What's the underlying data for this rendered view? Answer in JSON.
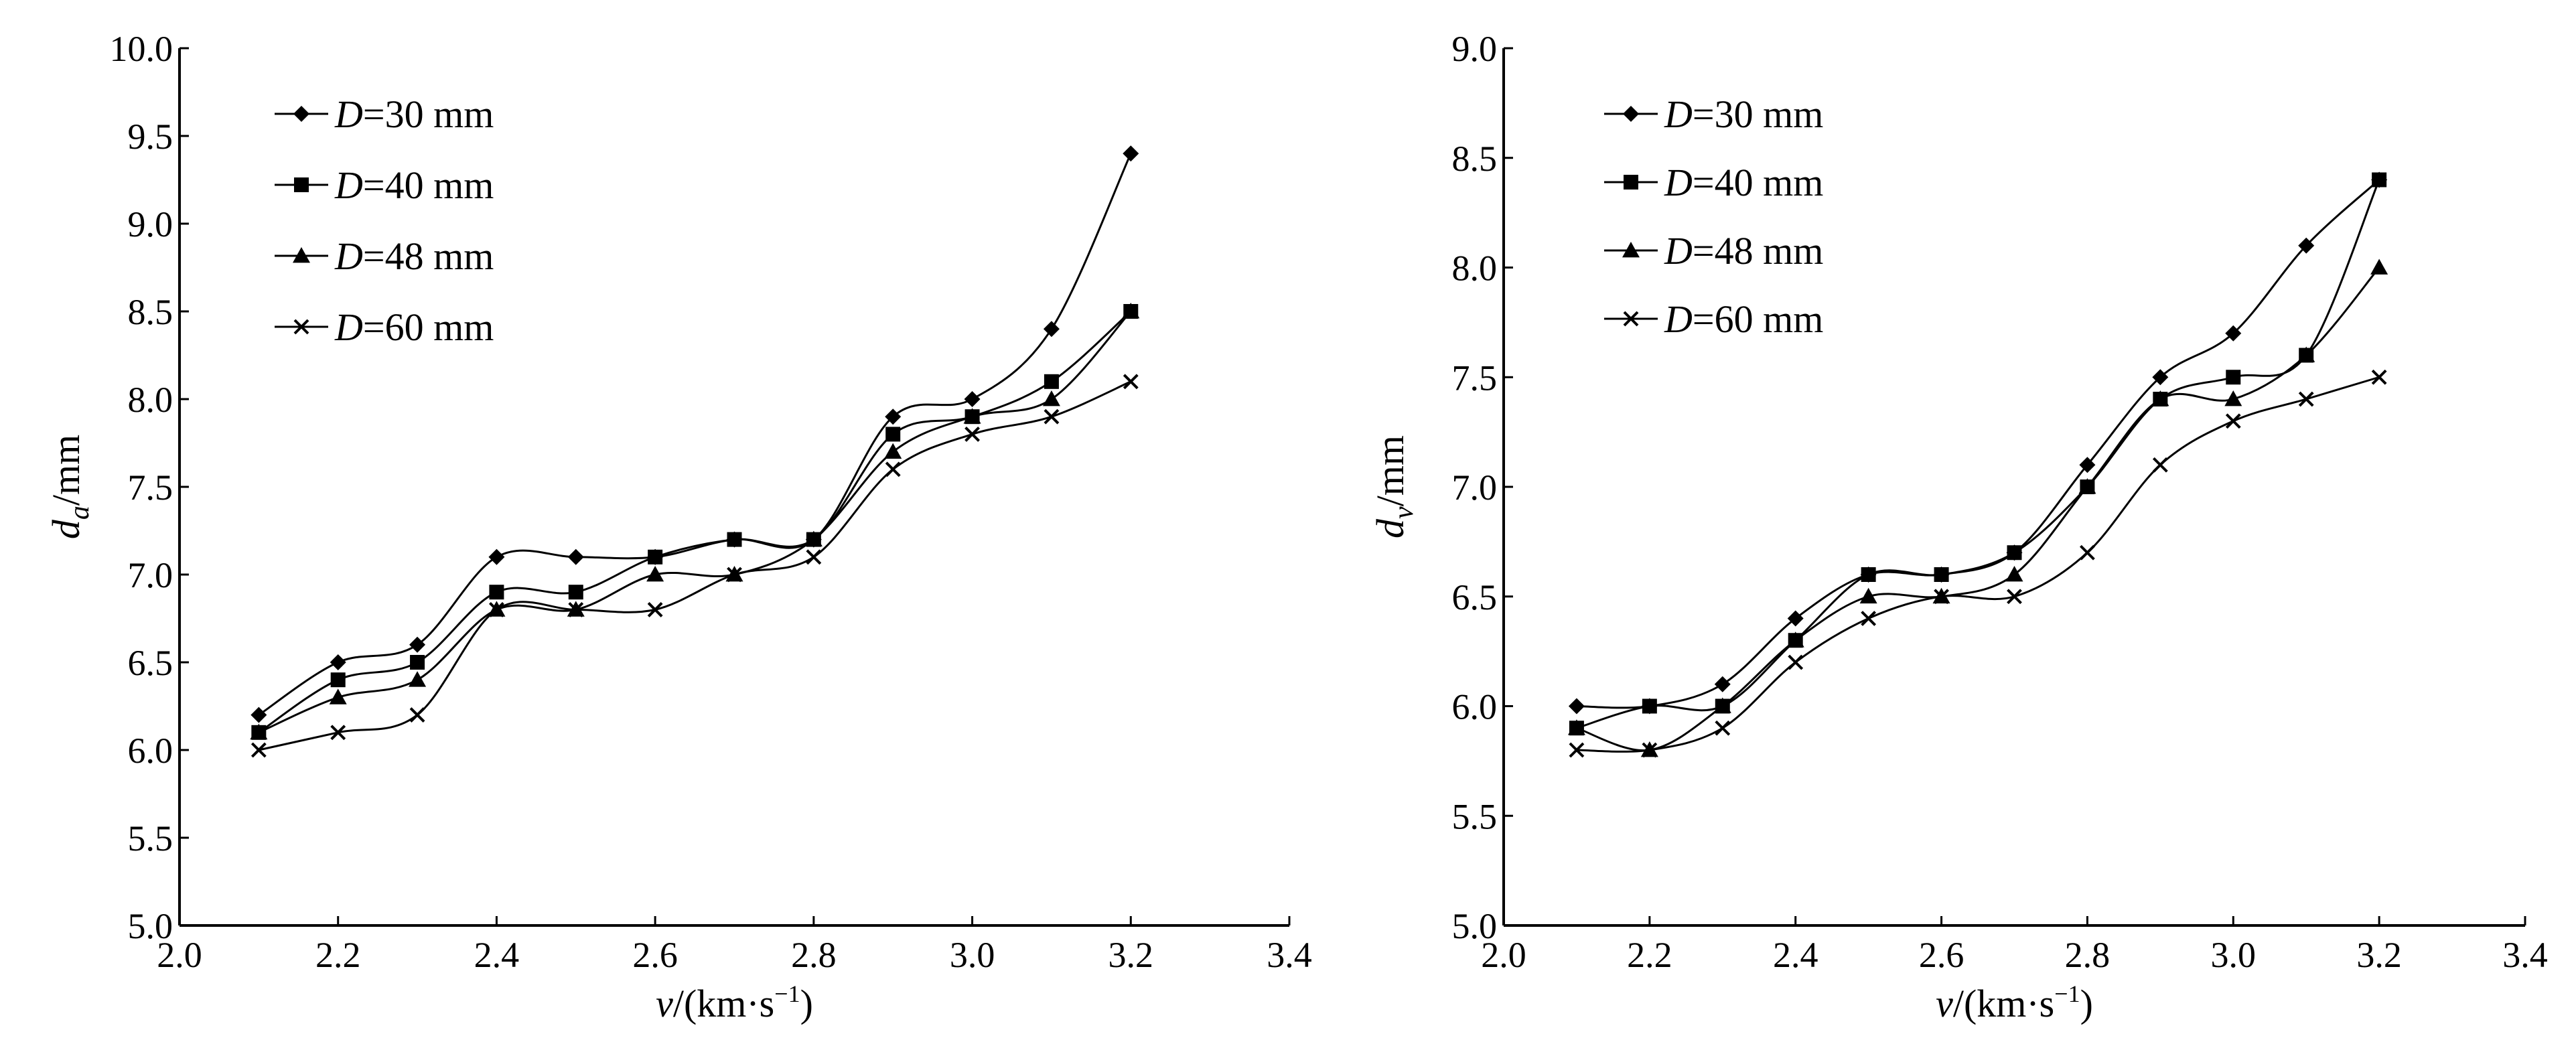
{
  "chart_data": [
    {
      "type": "line",
      "title": "",
      "xlabel": "v/(km·s⁻¹)",
      "ylabel": "da/mm",
      "xlim": [
        2.0,
        3.4
      ],
      "ylim": [
        5.0,
        10.0
      ],
      "x_ticks": [
        "2.0",
        "2.2",
        "2.4",
        "2.6",
        "2.8",
        "3.0",
        "3.2",
        "3.4"
      ],
      "y_ticks": [
        "5.0",
        "5.5",
        "6.0",
        "6.5",
        "7.0",
        "7.5",
        "8.0",
        "8.5",
        "9.0",
        "9.5",
        "10.0"
      ],
      "grid": false,
      "legend_position": "top-left",
      "x": [
        2.1,
        2.2,
        2.3,
        2.4,
        2.5,
        2.6,
        2.7,
        2.8,
        2.9,
        3.0,
        3.1,
        3.2
      ],
      "series": [
        {
          "name": "D=30 mm",
          "marker": "diamond",
          "values": [
            6.2,
            6.5,
            6.6,
            7.1,
            7.1,
            7.1,
            7.2,
            7.2,
            7.9,
            8.0,
            8.4,
            9.4
          ]
        },
        {
          "name": "D=40 mm",
          "marker": "square",
          "values": [
            6.1,
            6.4,
            6.5,
            6.9,
            6.9,
            7.1,
            7.2,
            7.2,
            7.8,
            7.9,
            8.1,
            8.5
          ]
        },
        {
          "name": "D=48 mm",
          "marker": "triangle",
          "values": [
            6.1,
            6.3,
            6.4,
            6.8,
            6.8,
            7.0,
            7.0,
            7.2,
            7.7,
            7.9,
            8.0,
            8.5
          ]
        },
        {
          "name": "D=60 mm",
          "marker": "x",
          "values": [
            6.0,
            6.1,
            6.2,
            6.8,
            6.8,
            6.8,
            7.0,
            7.1,
            7.6,
            7.8,
            7.9,
            8.1
          ]
        }
      ]
    },
    {
      "type": "line",
      "title": "",
      "xlabel": "v/(km·s⁻¹)",
      "ylabel": "dv/mm",
      "xlim": [
        2.0,
        3.4
      ],
      "ylim": [
        5.0,
        9.0
      ],
      "x_ticks": [
        "2.0",
        "2.2",
        "2.4",
        "2.6",
        "2.8",
        "3.0",
        "3.2",
        "3.4"
      ],
      "y_ticks": [
        "5.0",
        "5.5",
        "6.0",
        "6.5",
        "7.0",
        "7.5",
        "8.0",
        "8.5",
        "9.0"
      ],
      "grid": false,
      "legend_position": "top-left",
      "x": [
        2.1,
        2.2,
        2.3,
        2.4,
        2.5,
        2.6,
        2.7,
        2.8,
        2.9,
        3.0,
        3.1,
        3.2
      ],
      "series": [
        {
          "name": "D=30 mm",
          "marker": "diamond",
          "values": [
            6.0,
            6.0,
            6.1,
            6.4,
            6.6,
            6.6,
            6.7,
            7.1,
            7.5,
            7.7,
            8.1,
            8.4
          ]
        },
        {
          "name": "D=40 mm",
          "marker": "square",
          "values": [
            5.9,
            6.0,
            6.0,
            6.3,
            6.6,
            6.6,
            6.7,
            7.0,
            7.4,
            7.5,
            7.6,
            8.4
          ]
        },
        {
          "name": "D=48 mm",
          "marker": "triangle",
          "values": [
            5.9,
            5.8,
            6.0,
            6.3,
            6.5,
            6.5,
            6.6,
            7.0,
            7.4,
            7.4,
            7.6,
            8.0
          ]
        },
        {
          "name": "D=60 mm",
          "marker": "x",
          "values": [
            5.8,
            5.8,
            5.9,
            6.2,
            6.4,
            6.5,
            6.5,
            6.7,
            7.1,
            7.3,
            7.4,
            7.5
          ]
        }
      ]
    }
  ]
}
